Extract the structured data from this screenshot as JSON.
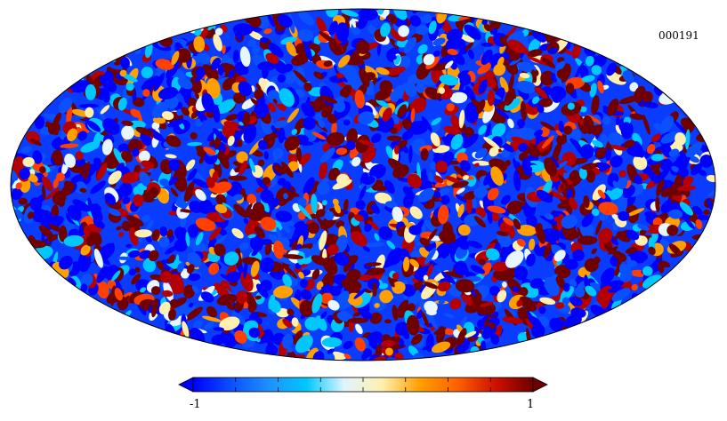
{
  "map": {
    "id_label": "000191",
    "projection": "mollweide",
    "palette": [
      "#0000ff",
      "#0a50ff",
      "#00c8ff",
      "#e8f6ff",
      "#fff0b0",
      "#ffa000",
      "#ff4000",
      "#b40000",
      "#6e0000"
    ]
  },
  "colorbar": {
    "min_label": "-1",
    "max_label": "1",
    "min_value": -1,
    "max_value": 1,
    "colors": [
      "#0000ff",
      "#0a50ff",
      "#1e90ff",
      "#00c8ff",
      "#dff4ff",
      "#fff0b0",
      "#ffa000",
      "#ff6000",
      "#d01000",
      "#6e0000"
    ]
  }
}
